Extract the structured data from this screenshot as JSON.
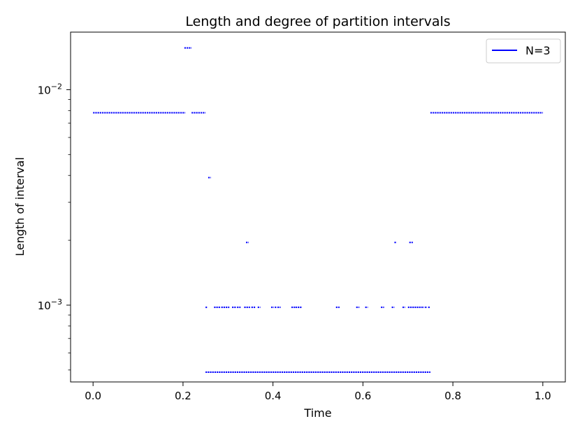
{
  "chart_data": {
    "type": "line",
    "title": "Length and degree of partition intervals",
    "xlabel": "Time",
    "ylabel": "Length of interval",
    "xlim": [
      -0.05,
      1.05
    ],
    "ylim": [
      0.00044,
      0.0185
    ],
    "yscale": "log",
    "grid": false,
    "legend_position": "top-right",
    "x_ticks": [
      {
        "value": 0.0,
        "label": "0.0"
      },
      {
        "value": 0.2,
        "label": "0.2"
      },
      {
        "value": 0.4,
        "label": "0.4"
      },
      {
        "value": 0.6,
        "label": "0.6"
      },
      {
        "value": 0.8,
        "label": "0.8"
      },
      {
        "value": 1.0,
        "label": "1.0"
      }
    ],
    "y_ticks": [
      {
        "value": 0.001,
        "base": "10",
        "exp": "−3"
      },
      {
        "value": 0.01,
        "base": "10",
        "exp": "−2"
      }
    ],
    "series": [
      {
        "name": "N=3",
        "color": "#0000ff",
        "segments": [
          [
            0.0,
            0.205,
            0.0078125
          ],
          [
            0.203,
            0.219,
            0.015625
          ],
          [
            0.219,
            0.25,
            0.0078125
          ],
          [
            0.25,
            0.254,
            0.0009765625
          ],
          [
            0.25,
            0.75,
            0.00048828125
          ],
          [
            0.256,
            0.262,
            0.00390625
          ],
          [
            0.34,
            0.346,
            0.001953125
          ],
          [
            0.269,
            0.283,
            0.0009765625
          ],
          [
            0.285,
            0.303,
            0.0009765625
          ],
          [
            0.309,
            0.318,
            0.0009765625
          ],
          [
            0.32,
            0.328,
            0.0009765625
          ],
          [
            0.336,
            0.349,
            0.0009765625
          ],
          [
            0.352,
            0.362,
            0.0009765625
          ],
          [
            0.366,
            0.372,
            0.0009765625
          ],
          [
            0.396,
            0.402,
            0.0009765625
          ],
          [
            0.404,
            0.409,
            0.0009765625
          ],
          [
            0.41,
            0.417,
            0.0009765625
          ],
          [
            0.441,
            0.449,
            0.0009765625
          ],
          [
            0.45,
            0.465,
            0.0009765625
          ],
          [
            0.54,
            0.548,
            0.0009765625
          ],
          [
            0.585,
            0.592,
            0.0009765625
          ],
          [
            0.605,
            0.611,
            0.0009765625
          ],
          [
            0.64,
            0.647,
            0.0009765625
          ],
          [
            0.664,
            0.67,
            0.0009765625
          ],
          [
            0.67,
            0.675,
            0.001953125
          ],
          [
            0.688,
            0.694,
            0.0009765625
          ],
          [
            0.7,
            0.736,
            0.0009765625
          ],
          [
            0.703,
            0.711,
            0.001953125
          ],
          [
            0.738,
            0.743,
            0.0009765625
          ],
          [
            0.745,
            0.75,
            0.0009765625
          ],
          [
            0.75,
            1.0,
            0.0078125
          ]
        ]
      }
    ]
  }
}
